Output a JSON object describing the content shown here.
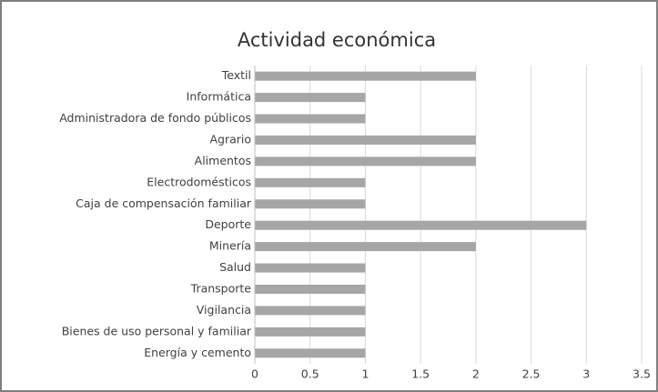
{
  "chart_data": {
    "type": "bar",
    "orientation": "horizontal",
    "title": "Actividad económica",
    "categories": [
      "Textil",
      "Informática",
      "Administradora de fondo públicos",
      "Agrario",
      "Alimentos",
      "Electrodomésticos",
      "Caja de compensación familiar",
      "Deporte",
      "Minería",
      "Salud",
      "Transporte",
      "Vigilancia",
      "Bienes de uso personal y familiar",
      "Energía y cemento"
    ],
    "values": [
      2,
      1,
      1,
      2,
      2,
      1,
      1,
      3,
      2,
      1,
      1,
      1,
      1,
      1
    ],
    "color": "#a6a6a6",
    "xlim": [
      0,
      3.5
    ],
    "xticks": [
      0,
      0.5,
      1,
      1.5,
      2,
      2.5,
      3,
      3.5
    ],
    "grid": true
  }
}
